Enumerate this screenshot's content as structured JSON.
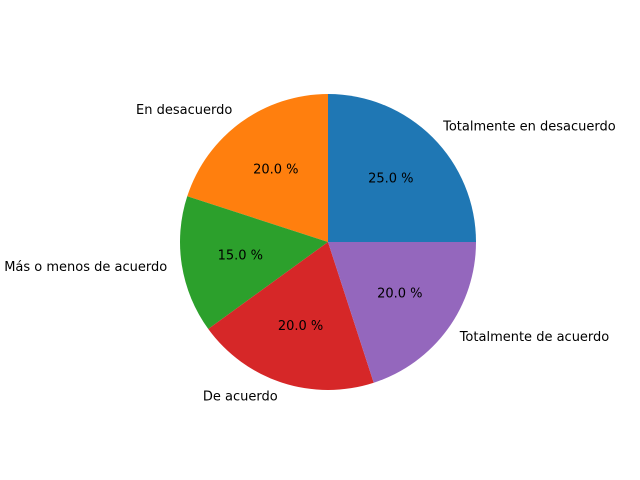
{
  "chart_data": {
    "type": "pie",
    "title": "",
    "categories": [
      "Totalmente en desacuerdo",
      "En desacuerdo",
      "Más o menos de acuerdo",
      "De acuerdo",
      "Totalmente de acuerdo"
    ],
    "values": [
      25.0,
      20.0,
      15.0,
      20.0,
      20.0
    ],
    "value_labels": [
      "25.0 %",
      "20.0 %",
      "15.0 %",
      "20.0 %",
      "20.0 %"
    ],
    "colors": [
      "#1f77b4",
      "#ff7f0e",
      "#2ca02c",
      "#d62728",
      "#9467bd"
    ],
    "start_angle_deg": 0,
    "direction": "counterclockwise",
    "legend": "none"
  }
}
